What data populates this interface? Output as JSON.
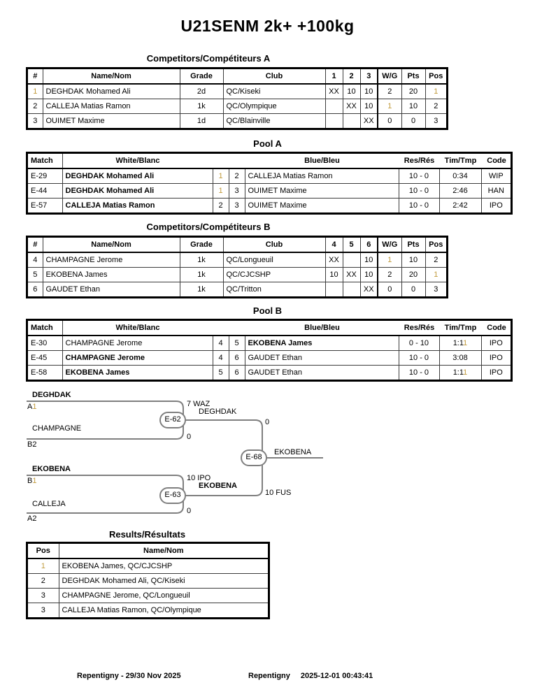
{
  "title": "U21SENM 2k+ +100kg",
  "colors": {
    "gold": "#C19A3C",
    "bracket_line": "#7f7f7f"
  },
  "competitors_a": {
    "title": "Competitors/Compétiteurs A",
    "headers": [
      "#",
      "Name/Nom",
      "Grade",
      "Club",
      "1",
      "2",
      "3",
      "W/G",
      "Pts",
      "Pos"
    ],
    "rows": [
      {
        "num": {
          "text": "1",
          "gold": true
        },
        "name": "DEGHDAK Mohamed Ali",
        "grade": "2d",
        "club": "QC/Kiseki",
        "c1": "XX",
        "c2": "10",
        "c3": "10",
        "wg": "2",
        "pts": "20",
        "pos": {
          "text": "1",
          "gold": true
        }
      },
      {
        "num": "2",
        "name": "CALLEJA Matias Ramon",
        "grade": "1k",
        "club": "QC/Olympique",
        "c1": "",
        "c2": "XX",
        "c3": "10",
        "wg": {
          "text": "1",
          "gold": true
        },
        "pts": "10",
        "pos": "2"
      },
      {
        "num": "3",
        "name": "OUIMET Maxime",
        "grade": "1d",
        "club": "QC/Blainville",
        "c1": "",
        "c2": "",
        "c3": "XX",
        "wg": "0",
        "pts": "0",
        "pos": "3"
      }
    ]
  },
  "pool_a": {
    "title": "Pool A",
    "headers": {
      "match": "Match",
      "white": "White/Blanc",
      "blue": "Blue/Bleu",
      "res": "Res/Rés",
      "tim": "Tim/Tmp",
      "code": "Code"
    },
    "rows": [
      {
        "match": "E-29",
        "white": {
          "text": "DEGHDAK Mohamed Ali",
          "bold": true
        },
        "n1": {
          "text": "1",
          "gold": true
        },
        "n2": "2",
        "blue": "CALLEJA Matias Ramon",
        "res": "10 - 0",
        "tim": "0:34",
        "code": "WIP"
      },
      {
        "match": "E-44",
        "white": {
          "text": "DEGHDAK Mohamed Ali",
          "bold": true
        },
        "n1": {
          "text": "1",
          "gold": true
        },
        "n2": "3",
        "blue": "OUIMET Maxime",
        "res": "10 - 0",
        "tim": "2:46",
        "code": "HAN"
      },
      {
        "match": "E-57",
        "white": {
          "text": "CALLEJA Matias Ramon",
          "bold": true
        },
        "n1": "2",
        "n2": "3",
        "blue": "OUIMET Maxime",
        "res": "10 - 0",
        "tim": "2:42",
        "code": "IPO"
      }
    ]
  },
  "competitors_b": {
    "title": "Competitors/Compétiteurs B",
    "headers": [
      "#",
      "Name/Nom",
      "Grade",
      "Club",
      "4",
      "5",
      "6",
      "W/G",
      "Pts",
      "Pos"
    ],
    "rows": [
      {
        "num": "4",
        "name": "CHAMPAGNE Jerome",
        "grade": "1k",
        "club": "QC/Longueuil",
        "c1": "XX",
        "c2": "",
        "c3": "10",
        "wg": {
          "text": "1",
          "gold": true
        },
        "pts": "10",
        "pos": "2"
      },
      {
        "num": "5",
        "name": "EKOBENA James",
        "grade": "1k",
        "club": "QC/CJCSHP",
        "c1": "10",
        "c2": "XX",
        "c3": "10",
        "wg": "2",
        "pts": "20",
        "pos": {
          "text": "1",
          "gold": true
        }
      },
      {
        "num": "6",
        "name": "GAUDET Ethan",
        "grade": "1k",
        "club": "QC/Tritton",
        "c1": "",
        "c2": "",
        "c3": "XX",
        "wg": "0",
        "pts": "0",
        "pos": "3"
      }
    ]
  },
  "pool_b": {
    "title": "Pool B",
    "headers": {
      "match": "Match",
      "white": "White/Blanc",
      "blue": "Blue/Bleu",
      "res": "Res/Rés",
      "tim": "Tim/Tmp",
      "code": "Code"
    },
    "rows": [
      {
        "match": "E-30",
        "white": "CHAMPAGNE Jerome",
        "n1": "4",
        "n2": "5",
        "blue": {
          "text": "EKOBENA James",
          "bold": true
        },
        "res": "0 - 10",
        "tim": [
          {
            "text": "1:1"
          },
          {
            "text": "1",
            "gold": true
          }
        ],
        "code": "IPO"
      },
      {
        "match": "E-45",
        "white": {
          "text": "CHAMPAGNE Jerome",
          "bold": true
        },
        "n1": "4",
        "n2": "6",
        "blue": "GAUDET Ethan",
        "res": "10 - 0",
        "tim": "3:08",
        "code": "IPO"
      },
      {
        "match": "E-58",
        "white": {
          "text": "EKOBENA James",
          "bold": true
        },
        "n1": "5",
        "n2": "6",
        "blue": "GAUDET Ethan",
        "res": "10 - 0",
        "tim": [
          {
            "text": "1:1"
          },
          {
            "text": "1",
            "gold": true
          }
        ],
        "code": "IPO"
      }
    ]
  },
  "bracket": {
    "sf1": {
      "top_name": "DEGHDAK",
      "top_seed_letter": "A",
      "top_seed_one": "1",
      "bottom_name": "CHAMPAGNE",
      "bottom_seed": "B2",
      "match_label": "E-62",
      "top_score": "7 WAZ",
      "winner_name": "DEGHDAK",
      "bottom_score": "0"
    },
    "sf2": {
      "top_name": "EKOBENA",
      "top_seed_letter": "B",
      "top_seed_one": "1",
      "bottom_name": "CALLEJA",
      "bottom_seed": "A2",
      "match_label": "E-63",
      "top_score": "10 IPO",
      "winner_name": "EKOBENA",
      "bottom_score": "0"
    },
    "final": {
      "match_label": "E-68",
      "top_score": "0",
      "winner_name": "EKOBENA",
      "bottom_score": "10 FUS"
    }
  },
  "results": {
    "title": "Results/Résultats",
    "headers": {
      "pos": "Pos",
      "name": "Name/Nom"
    },
    "rows": [
      {
        "pos": {
          "text": "1",
          "gold": true
        },
        "name": "EKOBENA James, QC/CJCSHP"
      },
      {
        "pos": "2",
        "name": "DEGHDAK Mohamed Ali, QC/Kiseki"
      },
      {
        "pos": "3",
        "name": "CHAMPAGNE Jerome, QC/Longueuil"
      },
      {
        "pos": "3",
        "name": "CALLEJA Matias Ramon, QC/Olympique"
      }
    ]
  },
  "footer": {
    "left": "Repentigny - 29/30 Nov 2025",
    "right_venue": "Repentigny",
    "right_timestamp": "2025-12-01 00:43:41"
  }
}
